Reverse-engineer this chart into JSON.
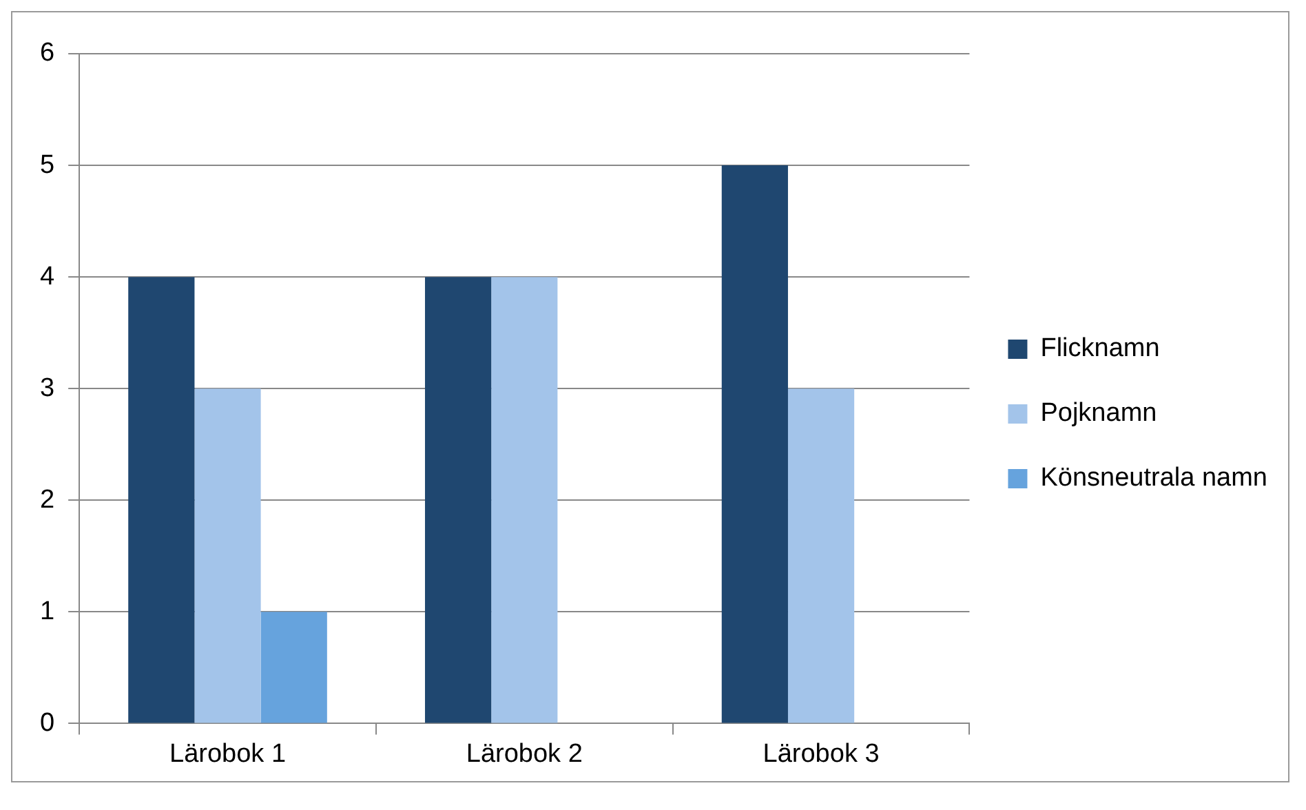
{
  "chart_data": {
    "type": "bar",
    "categories": [
      "Lärobok 1",
      "Lärobok 2",
      "Lärobok 3"
    ],
    "series": [
      {
        "name": "Flicknamn",
        "color": "#1f4770",
        "values": [
          4,
          4,
          5
        ]
      },
      {
        "name": "Pojknamn",
        "color": "#a3c4ea",
        "values": [
          3,
          4,
          3
        ]
      },
      {
        "name": "Könsneutrala namn",
        "color": "#66a3dd",
        "values": [
          1,
          0,
          0
        ]
      }
    ],
    "ylim": [
      0,
      6
    ],
    "yticks": [
      0,
      1,
      2,
      3,
      4,
      5,
      6
    ],
    "grid": "y",
    "legend": "right"
  }
}
